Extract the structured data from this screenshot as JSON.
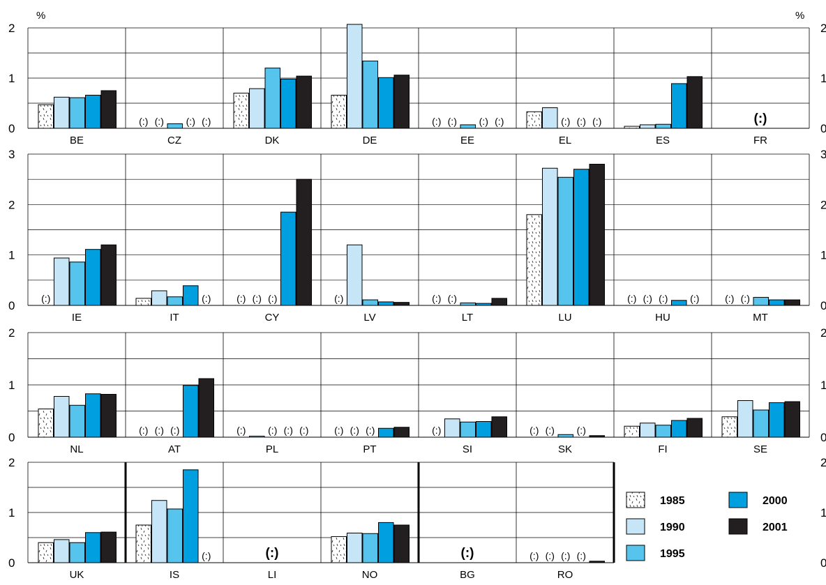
{
  "chart_data": {
    "type": "bar",
    "unit_label_left": "%",
    "unit_label_right": "%",
    "series_names": [
      "1985",
      "1990",
      "1995",
      "2000",
      "2001"
    ],
    "series_colors": {
      "1985": "#ffffff",
      "1990": "#c6e6f8",
      "1995": "#56c4ec",
      "2000": "#00a0e0",
      "2001": "#231f20"
    },
    "legend": {
      "placement": "bottom-right",
      "items": [
        {
          "label": "1985",
          "series": "1985"
        },
        {
          "label": "2000",
          "series": "2000"
        },
        {
          "label": "1990",
          "series": "1990"
        },
        {
          "label": "2001",
          "series": "2001"
        },
        {
          "label": "1995",
          "series": "1995"
        }
      ]
    },
    "missing_label": "(:)",
    "grid": true,
    "panel_rows": [
      {
        "ylim": [
          0,
          2
        ],
        "yticks": [
          "0",
          "1",
          "2"
        ],
        "countries": [
          {
            "code": "BE",
            "values": [
              0.47,
              0.62,
              0.61,
              0.66,
              0.75
            ]
          },
          {
            "code": "CZ",
            "values": [
              null,
              null,
              0.09,
              null,
              null
            ]
          },
          {
            "code": "DK",
            "values": [
              0.7,
              0.79,
              1.2,
              0.98,
              1.04
            ]
          },
          {
            "code": "DE",
            "values": [
              0.66,
              2.07,
              1.34,
              1.01,
              1.06
            ]
          },
          {
            "code": "EE",
            "values": [
              null,
              null,
              0.07,
              null,
              null
            ]
          },
          {
            "code": "EL",
            "values": [
              0.33,
              0.41,
              null,
              null,
              null
            ]
          },
          {
            "code": "ES",
            "values": [
              0.04,
              0.07,
              0.08,
              0.89,
              1.03
            ]
          },
          {
            "code": "FR",
            "values": [
              null,
              null,
              null,
              null,
              null
            ],
            "all_missing": true
          }
        ]
      },
      {
        "ylim": [
          0,
          3
        ],
        "yticks": [
          "0",
          "1",
          "2",
          "3"
        ],
        "countries": [
          {
            "code": "IE",
            "values": [
              null,
              0.94,
              0.86,
              1.11,
              1.2
            ]
          },
          {
            "code": "IT",
            "values": [
              0.14,
              0.29,
              0.17,
              0.39,
              null
            ]
          },
          {
            "code": "CY",
            "values": [
              null,
              null,
              null,
              1.85,
              2.5
            ]
          },
          {
            "code": "LV",
            "values": [
              null,
              1.2,
              0.11,
              0.07,
              0.06
            ]
          },
          {
            "code": "LT",
            "values": [
              null,
              null,
              0.05,
              0.04,
              0.14
            ]
          },
          {
            "code": "LU",
            "values": [
              1.8,
              2.72,
              2.54,
              2.7,
              2.8
            ]
          },
          {
            "code": "HU",
            "values": [
              null,
              null,
              null,
              0.1,
              null
            ]
          },
          {
            "code": "MT",
            "values": [
              null,
              null,
              0.16,
              0.11,
              0.11
            ]
          }
        ]
      },
      {
        "ylim": [
          0,
          2
        ],
        "yticks": [
          "0",
          "1",
          "2"
        ],
        "countries": [
          {
            "code": "NL",
            "values": [
              0.54,
              0.78,
              0.61,
              0.83,
              0.82
            ]
          },
          {
            "code": "AT",
            "values": [
              null,
              null,
              null,
              0.99,
              1.12
            ]
          },
          {
            "code": "PL",
            "values": [
              null,
              0.02,
              null,
              null,
              null
            ]
          },
          {
            "code": "PT",
            "values": [
              null,
              null,
              null,
              0.17,
              0.19
            ]
          },
          {
            "code": "SI",
            "values": [
              null,
              0.35,
              0.29,
              0.3,
              0.39
            ]
          },
          {
            "code": "SK",
            "values": [
              null,
              null,
              0.05,
              null,
              0.03
            ]
          },
          {
            "code": "FI",
            "values": [
              0.21,
              0.27,
              0.23,
              0.32,
              0.36
            ]
          },
          {
            "code": "SE",
            "values": [
              0.39,
              0.7,
              0.52,
              0.66,
              0.68
            ]
          }
        ]
      },
      {
        "ylim": [
          0,
          2
        ],
        "yticks": [
          "0",
          "1",
          "2"
        ],
        "thick_separators_after": [
          "UK",
          "NO",
          "RO"
        ],
        "countries": [
          {
            "code": "UK",
            "values": [
              0.4,
              0.46,
              0.4,
              0.6,
              0.61
            ]
          },
          {
            "code": "IS",
            "values": [
              0.75,
              1.24,
              1.07,
              1.85,
              null
            ]
          },
          {
            "code": "LI",
            "values": [
              null,
              null,
              null,
              null,
              null
            ],
            "all_missing": true
          },
          {
            "code": "NO",
            "values": [
              0.52,
              0.59,
              0.58,
              0.8,
              0.75
            ]
          },
          {
            "code": "BG",
            "values": [
              null,
              null,
              null,
              null,
              null
            ],
            "all_missing": true
          },
          {
            "code": "RO",
            "values": [
              null,
              null,
              null,
              null,
              0.03
            ]
          }
        ]
      }
    ]
  }
}
